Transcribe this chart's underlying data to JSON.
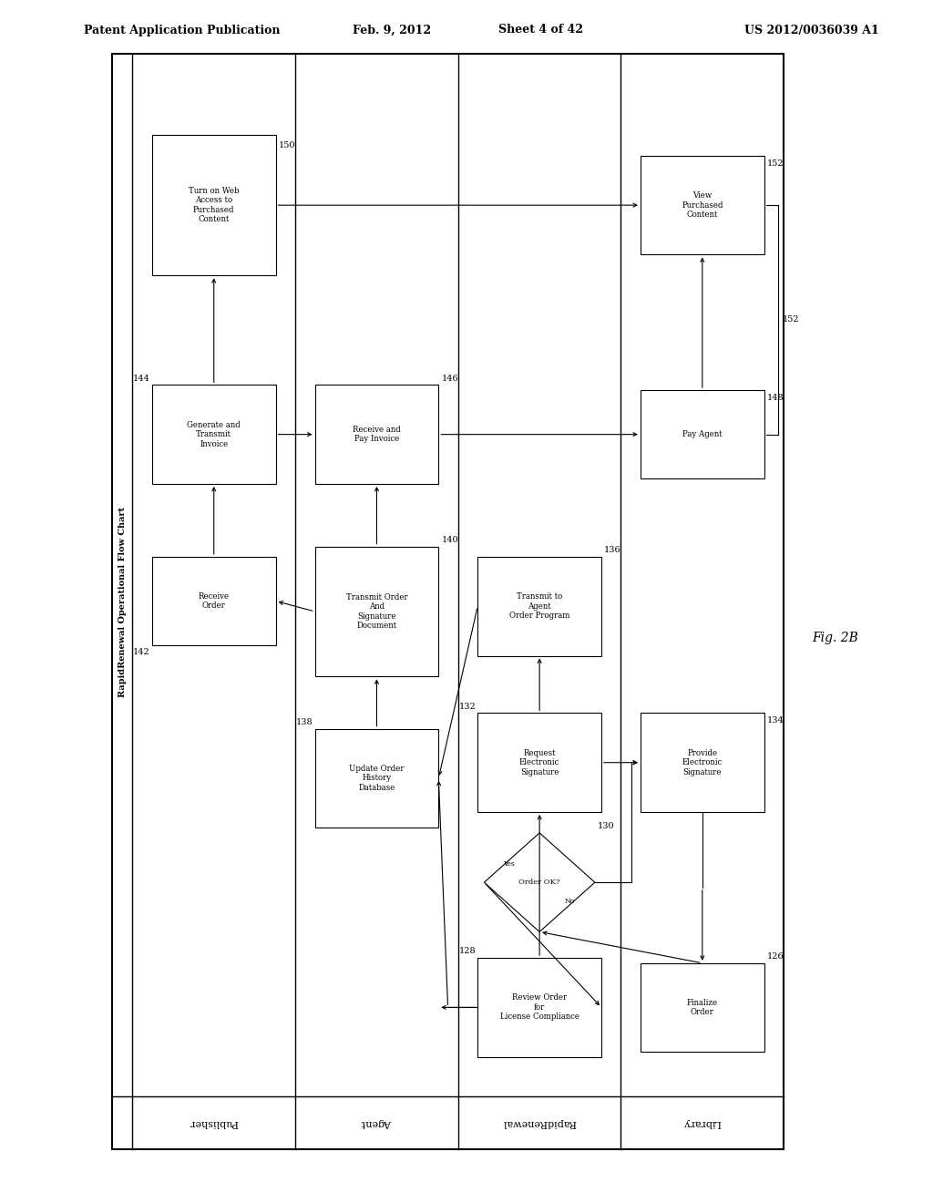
{
  "title_header": "Patent Application Publication",
  "date": "Feb. 9, 2012",
  "sheet": "Sheet 4 of 42",
  "patent_num": "US 2012/0036039 A1",
  "fig_label": "Fig. 2B",
  "chart_title": "RapidRenewal Operational Flow Chart",
  "bg_color": "#ffffff",
  "columns": [
    "Publisher",
    "Agent",
    "RapidRenewal",
    "Library"
  ]
}
